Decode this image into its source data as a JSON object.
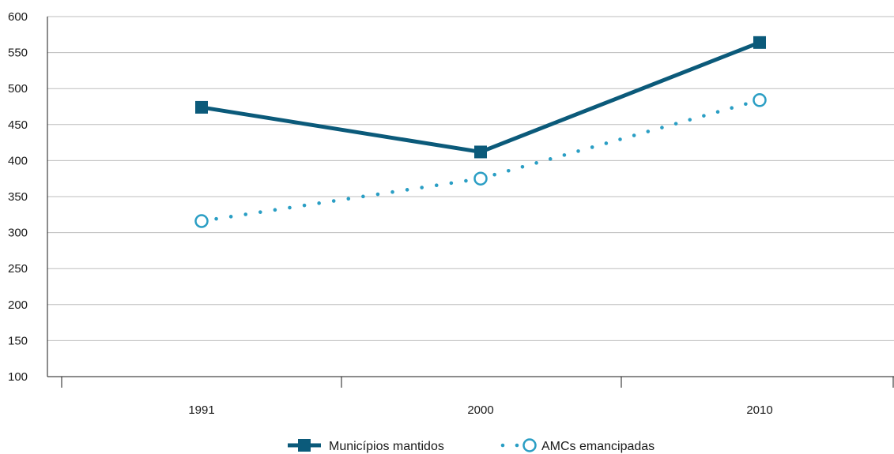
{
  "chart_data": {
    "type": "line",
    "title": "",
    "xlabel": "",
    "ylabel": "",
    "categories": [
      "1991",
      "2000",
      "2010"
    ],
    "ylim": [
      100,
      600
    ],
    "yticks": [
      100,
      150,
      200,
      250,
      300,
      350,
      400,
      450,
      500,
      550,
      600
    ],
    "grid": true,
    "legend_position": "bottom-center",
    "series": [
      {
        "name": "Municípios mantidos",
        "values": [
          474,
          412,
          564
        ],
        "color": "#0b5a7a",
        "line_style": "solid",
        "marker": "filled-square"
      },
      {
        "name": "AMCs emancipadas",
        "values": [
          316,
          375,
          484
        ],
        "color": "#2a9ec4",
        "line_style": "dotted",
        "marker": "hollow-circle"
      }
    ]
  }
}
